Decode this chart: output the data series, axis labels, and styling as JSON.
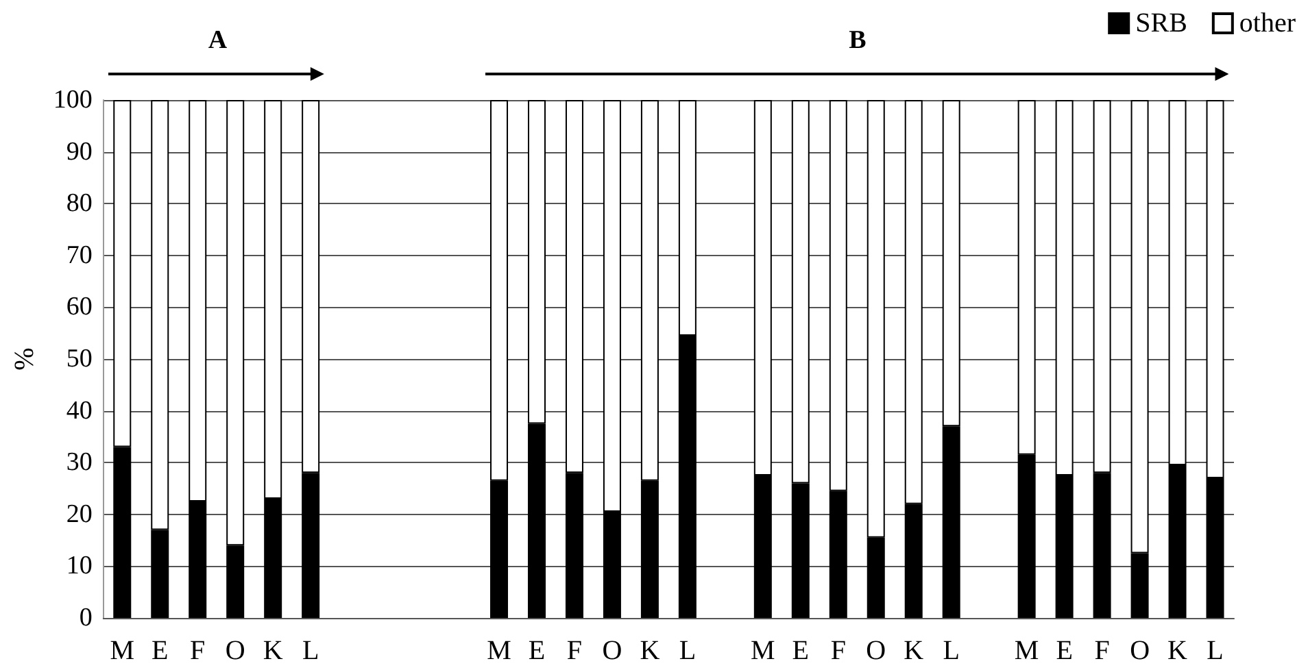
{
  "chart_data": {
    "type": "bar",
    "stacked": true,
    "ylabel": "%",
    "categories": [
      "M",
      "E",
      "F",
      "O",
      "K",
      "L",
      null,
      null,
      null,
      null,
      "M",
      "E",
      "F",
      "O",
      "K",
      "L",
      null,
      "M",
      "E",
      "F",
      "O",
      "K",
      "L",
      null,
      "M",
      "E",
      "F",
      "O",
      "K",
      "L"
    ],
    "series": [
      {
        "name": "SRB",
        "color": "#000000",
        "values": [
          33,
          17,
          22.5,
          14,
          23,
          28,
          null,
          null,
          null,
          null,
          26.5,
          37.5,
          28,
          20.5,
          26.5,
          54.5,
          null,
          27.5,
          26,
          24.5,
          15.5,
          22,
          37,
          null,
          31.5,
          27.5,
          28,
          12.5,
          29.5,
          27
        ]
      },
      {
        "name": "other",
        "color": "#ffffff",
        "values": [
          67,
          83,
          77.5,
          86,
          77,
          72,
          null,
          null,
          null,
          null,
          73.5,
          62.5,
          72,
          79.5,
          73.5,
          45.5,
          null,
          72.5,
          74,
          75.5,
          84.5,
          78,
          63,
          null,
          68.5,
          72.5,
          72,
          87.5,
          70.5,
          73
        ]
      }
    ],
    "annotations": [
      "A",
      "B"
    ],
    "ylim": [
      0,
      100
    ],
    "yticks": [
      0,
      10,
      20,
      30,
      40,
      50,
      60,
      70,
      80,
      90,
      100
    ],
    "grid": "y",
    "legend": "top right"
  }
}
